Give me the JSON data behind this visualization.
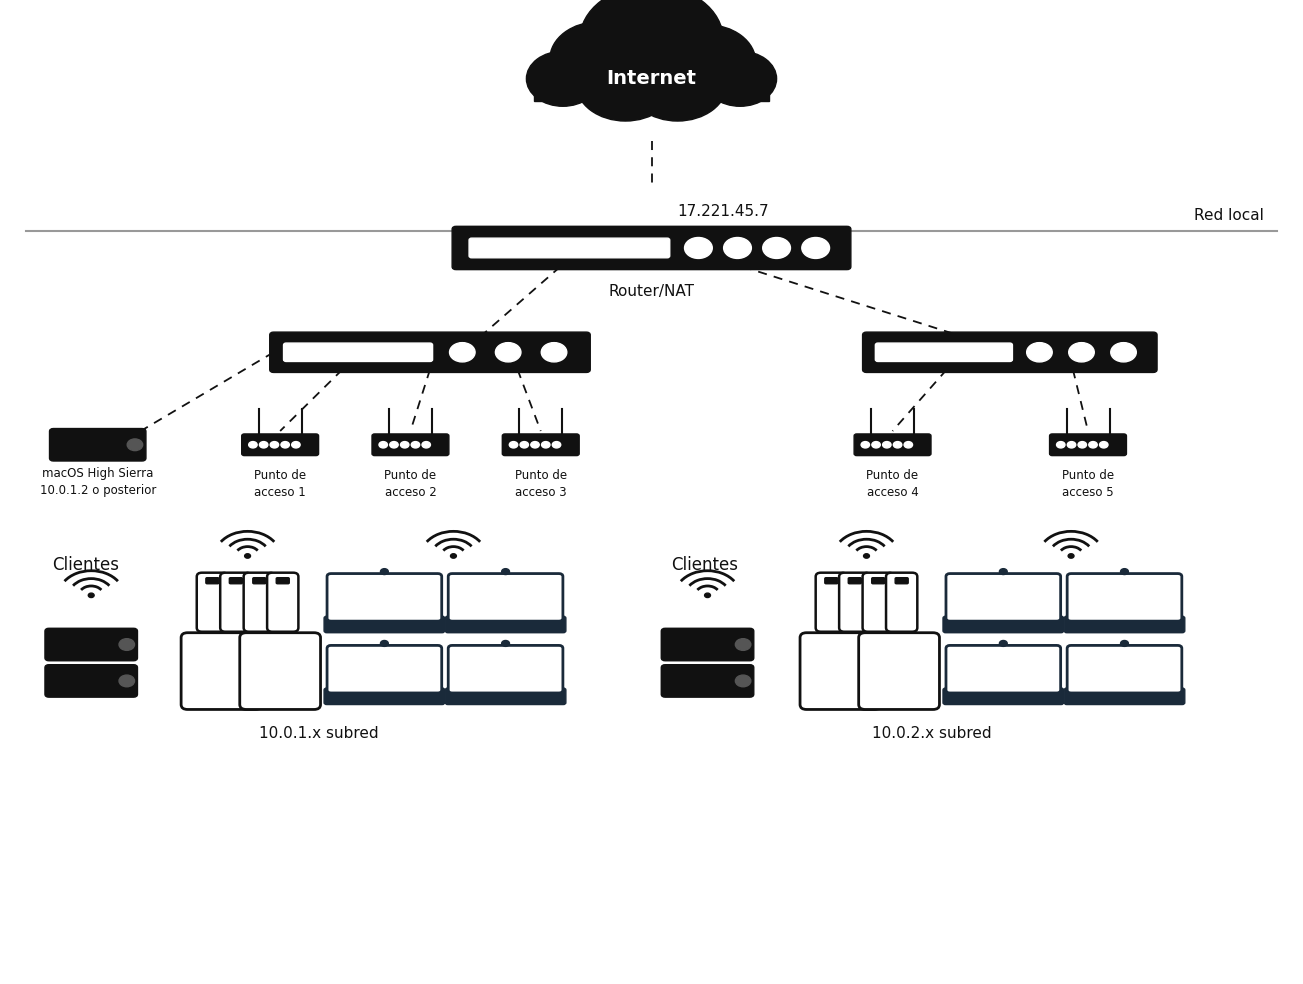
{
  "bg_color": "#ffffff",
  "text_color": "#000000",
  "device_color": "#111111",
  "line_color": "#222222",
  "horizontal_line_color": "#999999",
  "cloud_text": "Internet",
  "ip_text": "17.221.45.7",
  "router_label": "Router/NAT",
  "red_local_label": "Red local",
  "macos_label1": "macOS High Sierra",
  "macos_label2": "10.0.1.2 o posterior",
  "access_points": [
    "Punto de\nacceso 1",
    "Punto de\nacceso 2",
    "Punto de\nacceso 3",
    "Punto de\nacceso 4",
    "Punto de\nacceso 5"
  ],
  "subnet1_label": "10.0.1.x subred",
  "subnet2_label": "10.0.2.x subred",
  "clientes_label": "Clientes"
}
